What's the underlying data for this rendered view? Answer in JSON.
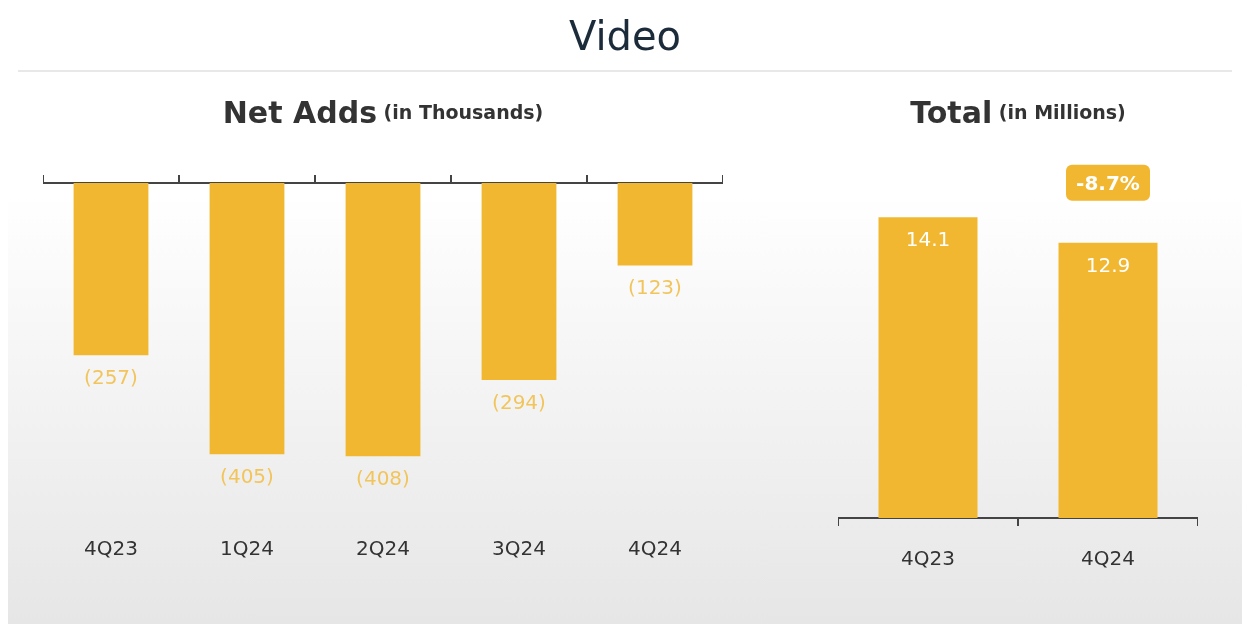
{
  "chart_data": [
    {
      "type": "bar",
      "title": "Net Adds (in Thousands)",
      "annotations": [
        "Video"
      ],
      "categories": [
        "4Q23",
        "1Q24",
        "2Q24",
        "3Q24",
        "4Q24"
      ],
      "values": [
        -257,
        -405,
        -408,
        -294,
        -123
      ],
      "value_labels": [
        "(257)",
        "(405)",
        "(408)",
        "(294)",
        "(123)"
      ],
      "color": "#f2b731"
    },
    {
      "type": "bar",
      "title": "Total (in Millions)",
      "categories": [
        "4Q23",
        "4Q24"
      ],
      "values": [
        14.1,
        12.9
      ],
      "color": "#f2b731",
      "data_labels": true,
      "annotations": [
        {
          "text": "-8.7%",
          "x": "4Q24",
          "y": 12.9
        }
      ]
    }
  ]
}
